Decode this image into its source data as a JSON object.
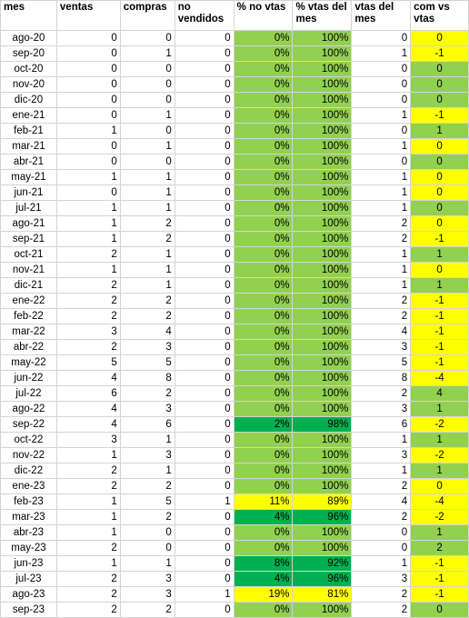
{
  "columns": [
    "mes",
    "ventas",
    "compras",
    "no vendidos",
    "% no vtas",
    "% vtas del mes",
    "vtas del mes",
    "com vs vtas"
  ],
  "colors": {
    "light_green": "#92d050",
    "dark_green": "#00b050",
    "yellow": "#ffff00",
    "gridline": "#d4d4d4"
  },
  "rows": [
    {
      "mes": "ago-20",
      "ventas": "0",
      "compras": "0",
      "no_vendidos": "0",
      "pct_no_vtas": "0%",
      "pct_vtas_mes": "100%",
      "vtas_mes": "0",
      "com_vs_vtas": "0",
      "pct_fill": "light_green",
      "cvv_fill": "yellow"
    },
    {
      "mes": "sep-20",
      "ventas": "0",
      "compras": "1",
      "no_vendidos": "0",
      "pct_no_vtas": "0%",
      "pct_vtas_mes": "100%",
      "vtas_mes": "1",
      "com_vs_vtas": "-1",
      "pct_fill": "light_green",
      "cvv_fill": "yellow"
    },
    {
      "mes": "oct-20",
      "ventas": "0",
      "compras": "0",
      "no_vendidos": "0",
      "pct_no_vtas": "0%",
      "pct_vtas_mes": "100%",
      "vtas_mes": "0",
      "com_vs_vtas": "0",
      "pct_fill": "light_green",
      "cvv_fill": "light_green"
    },
    {
      "mes": "nov-20",
      "ventas": "0",
      "compras": "0",
      "no_vendidos": "0",
      "pct_no_vtas": "0%",
      "pct_vtas_mes": "100%",
      "vtas_mes": "0",
      "com_vs_vtas": "0",
      "pct_fill": "light_green",
      "cvv_fill": "light_green"
    },
    {
      "mes": "dic-20",
      "ventas": "0",
      "compras": "0",
      "no_vendidos": "0",
      "pct_no_vtas": "0%",
      "pct_vtas_mes": "100%",
      "vtas_mes": "0",
      "com_vs_vtas": "0",
      "pct_fill": "light_green",
      "cvv_fill": "light_green"
    },
    {
      "mes": "ene-21",
      "ventas": "0",
      "compras": "1",
      "no_vendidos": "0",
      "pct_no_vtas": "0%",
      "pct_vtas_mes": "100%",
      "vtas_mes": "1",
      "com_vs_vtas": "-1",
      "pct_fill": "light_green",
      "cvv_fill": "yellow"
    },
    {
      "mes": "feb-21",
      "ventas": "1",
      "compras": "0",
      "no_vendidos": "0",
      "pct_no_vtas": "0%",
      "pct_vtas_mes": "100%",
      "vtas_mes": "0",
      "com_vs_vtas": "1",
      "pct_fill": "light_green",
      "cvv_fill": "light_green"
    },
    {
      "mes": "mar-21",
      "ventas": "0",
      "compras": "1",
      "no_vendidos": "0",
      "pct_no_vtas": "0%",
      "pct_vtas_mes": "100%",
      "vtas_mes": "1",
      "com_vs_vtas": "0",
      "pct_fill": "light_green",
      "cvv_fill": "yellow"
    },
    {
      "mes": "abr-21",
      "ventas": "0",
      "compras": "0",
      "no_vendidos": "0",
      "pct_no_vtas": "0%",
      "pct_vtas_mes": "100%",
      "vtas_mes": "0",
      "com_vs_vtas": "0",
      "pct_fill": "light_green",
      "cvv_fill": "light_green"
    },
    {
      "mes": "may-21",
      "ventas": "1",
      "compras": "1",
      "no_vendidos": "0",
      "pct_no_vtas": "0%",
      "pct_vtas_mes": "100%",
      "vtas_mes": "1",
      "com_vs_vtas": "0",
      "pct_fill": "light_green",
      "cvv_fill": "yellow"
    },
    {
      "mes": "jun-21",
      "ventas": "0",
      "compras": "1",
      "no_vendidos": "0",
      "pct_no_vtas": "0%",
      "pct_vtas_mes": "100%",
      "vtas_mes": "1",
      "com_vs_vtas": "0",
      "pct_fill": "light_green",
      "cvv_fill": "yellow"
    },
    {
      "mes": "jul-21",
      "ventas": "1",
      "compras": "1",
      "no_vendidos": "0",
      "pct_no_vtas": "0%",
      "pct_vtas_mes": "100%",
      "vtas_mes": "1",
      "com_vs_vtas": "0",
      "pct_fill": "light_green",
      "cvv_fill": "light_green"
    },
    {
      "mes": "ago-21",
      "ventas": "1",
      "compras": "2",
      "no_vendidos": "0",
      "pct_no_vtas": "0%",
      "pct_vtas_mes": "100%",
      "vtas_mes": "2",
      "com_vs_vtas": "0",
      "pct_fill": "light_green",
      "cvv_fill": "yellow"
    },
    {
      "mes": "sep-21",
      "ventas": "1",
      "compras": "2",
      "no_vendidos": "0",
      "pct_no_vtas": "0%",
      "pct_vtas_mes": "100%",
      "vtas_mes": "2",
      "com_vs_vtas": "-1",
      "pct_fill": "light_green",
      "cvv_fill": "yellow"
    },
    {
      "mes": "oct-21",
      "ventas": "2",
      "compras": "1",
      "no_vendidos": "0",
      "pct_no_vtas": "0%",
      "pct_vtas_mes": "100%",
      "vtas_mes": "1",
      "com_vs_vtas": "1",
      "pct_fill": "light_green",
      "cvv_fill": "light_green"
    },
    {
      "mes": "nov-21",
      "ventas": "1",
      "compras": "1",
      "no_vendidos": "0",
      "pct_no_vtas": "0%",
      "pct_vtas_mes": "100%",
      "vtas_mes": "1",
      "com_vs_vtas": "0",
      "pct_fill": "light_green",
      "cvv_fill": "yellow"
    },
    {
      "mes": "dic-21",
      "ventas": "2",
      "compras": "1",
      "no_vendidos": "0",
      "pct_no_vtas": "0%",
      "pct_vtas_mes": "100%",
      "vtas_mes": "1",
      "com_vs_vtas": "1",
      "pct_fill": "light_green",
      "cvv_fill": "light_green"
    },
    {
      "mes": "ene-22",
      "ventas": "2",
      "compras": "2",
      "no_vendidos": "0",
      "pct_no_vtas": "0%",
      "pct_vtas_mes": "100%",
      "vtas_mes": "2",
      "com_vs_vtas": "-1",
      "pct_fill": "light_green",
      "cvv_fill": "yellow"
    },
    {
      "mes": "feb-22",
      "ventas": "2",
      "compras": "2",
      "no_vendidos": "0",
      "pct_no_vtas": "0%",
      "pct_vtas_mes": "100%",
      "vtas_mes": "2",
      "com_vs_vtas": "-1",
      "pct_fill": "light_green",
      "cvv_fill": "yellow"
    },
    {
      "mes": "mar-22",
      "ventas": "3",
      "compras": "4",
      "no_vendidos": "0",
      "pct_no_vtas": "0%",
      "pct_vtas_mes": "100%",
      "vtas_mes": "4",
      "com_vs_vtas": "-1",
      "pct_fill": "light_green",
      "cvv_fill": "yellow"
    },
    {
      "mes": "abr-22",
      "ventas": "2",
      "compras": "3",
      "no_vendidos": "0",
      "pct_no_vtas": "0%",
      "pct_vtas_mes": "100%",
      "vtas_mes": "3",
      "com_vs_vtas": "-1",
      "pct_fill": "light_green",
      "cvv_fill": "yellow"
    },
    {
      "mes": "may-22",
      "ventas": "5",
      "compras": "5",
      "no_vendidos": "0",
      "pct_no_vtas": "0%",
      "pct_vtas_mes": "100%",
      "vtas_mes": "5",
      "com_vs_vtas": "-1",
      "pct_fill": "light_green",
      "cvv_fill": "yellow"
    },
    {
      "mes": "jun-22",
      "ventas": "4",
      "compras": "8",
      "no_vendidos": "0",
      "pct_no_vtas": "0%",
      "pct_vtas_mes": "100%",
      "vtas_mes": "8",
      "com_vs_vtas": "-4",
      "pct_fill": "light_green",
      "cvv_fill": "yellow"
    },
    {
      "mes": "jul-22",
      "ventas": "6",
      "compras": "2",
      "no_vendidos": "0",
      "pct_no_vtas": "0%",
      "pct_vtas_mes": "100%",
      "vtas_mes": "2",
      "com_vs_vtas": "4",
      "pct_fill": "light_green",
      "cvv_fill": "light_green"
    },
    {
      "mes": "ago-22",
      "ventas": "4",
      "compras": "3",
      "no_vendidos": "0",
      "pct_no_vtas": "0%",
      "pct_vtas_mes": "100%",
      "vtas_mes": "3",
      "com_vs_vtas": "1",
      "pct_fill": "light_green",
      "cvv_fill": "light_green"
    },
    {
      "mes": "sep-22",
      "ventas": "4",
      "compras": "6",
      "no_vendidos": "0",
      "pct_no_vtas": "2%",
      "pct_vtas_mes": "98%",
      "vtas_mes": "6",
      "com_vs_vtas": "-2",
      "pct_fill": "dark_green",
      "cvv_fill": "yellow"
    },
    {
      "mes": "oct-22",
      "ventas": "3",
      "compras": "1",
      "no_vendidos": "0",
      "pct_no_vtas": "0%",
      "pct_vtas_mes": "100%",
      "vtas_mes": "1",
      "com_vs_vtas": "1",
      "pct_fill": "light_green",
      "cvv_fill": "light_green"
    },
    {
      "mes": "nov-22",
      "ventas": "1",
      "compras": "3",
      "no_vendidos": "0",
      "pct_no_vtas": "0%",
      "pct_vtas_mes": "100%",
      "vtas_mes": "3",
      "com_vs_vtas": "-2",
      "pct_fill": "light_green",
      "cvv_fill": "yellow"
    },
    {
      "mes": "dic-22",
      "ventas": "2",
      "compras": "1",
      "no_vendidos": "0",
      "pct_no_vtas": "0%",
      "pct_vtas_mes": "100%",
      "vtas_mes": "1",
      "com_vs_vtas": "1",
      "pct_fill": "light_green",
      "cvv_fill": "light_green"
    },
    {
      "mes": "ene-23",
      "ventas": "2",
      "compras": "2",
      "no_vendidos": "0",
      "pct_no_vtas": "0%",
      "pct_vtas_mes": "100%",
      "vtas_mes": "2",
      "com_vs_vtas": "0",
      "pct_fill": "light_green",
      "cvv_fill": "yellow"
    },
    {
      "mes": "feb-23",
      "ventas": "1",
      "compras": "5",
      "no_vendidos": "1",
      "pct_no_vtas": "11%",
      "pct_vtas_mes": "89%",
      "vtas_mes": "4",
      "com_vs_vtas": "-4",
      "pct_fill": "yellow",
      "cvv_fill": "yellow"
    },
    {
      "mes": "mar-23",
      "ventas": "1",
      "compras": "2",
      "no_vendidos": "0",
      "pct_no_vtas": "4%",
      "pct_vtas_mes": "96%",
      "vtas_mes": "2",
      "com_vs_vtas": "-2",
      "pct_fill": "dark_green",
      "cvv_fill": "yellow"
    },
    {
      "mes": "abr-23",
      "ventas": "1",
      "compras": "0",
      "no_vendidos": "0",
      "pct_no_vtas": "0%",
      "pct_vtas_mes": "100%",
      "vtas_mes": "0",
      "com_vs_vtas": "1",
      "pct_fill": "light_green",
      "cvv_fill": "light_green"
    },
    {
      "mes": "may-23",
      "ventas": "2",
      "compras": "0",
      "no_vendidos": "0",
      "pct_no_vtas": "0%",
      "pct_vtas_mes": "100%",
      "vtas_mes": "0",
      "com_vs_vtas": "2",
      "pct_fill": "light_green",
      "cvv_fill": "light_green"
    },
    {
      "mes": "jun-23",
      "ventas": "1",
      "compras": "1",
      "no_vendidos": "0",
      "pct_no_vtas": "8%",
      "pct_vtas_mes": "92%",
      "vtas_mes": "1",
      "com_vs_vtas": "-1",
      "pct_fill": "dark_green",
      "cvv_fill": "yellow"
    },
    {
      "mes": "jul-23",
      "ventas": "2",
      "compras": "3",
      "no_vendidos": "0",
      "pct_no_vtas": "4%",
      "pct_vtas_mes": "96%",
      "vtas_mes": "3",
      "com_vs_vtas": "-1",
      "pct_fill": "dark_green",
      "cvv_fill": "yellow"
    },
    {
      "mes": "ago-23",
      "ventas": "2",
      "compras": "3",
      "no_vendidos": "1",
      "pct_no_vtas": "19%",
      "pct_vtas_mes": "81%",
      "vtas_mes": "2",
      "com_vs_vtas": "-1",
      "pct_fill": "yellow",
      "cvv_fill": "yellow"
    },
    {
      "mes": "sep-23",
      "ventas": "2",
      "compras": "2",
      "no_vendidos": "0",
      "pct_no_vtas": "0%",
      "pct_vtas_mes": "100%",
      "vtas_mes": "2",
      "com_vs_vtas": "0",
      "pct_fill": "light_green",
      "cvv_fill": "light_green"
    }
  ]
}
